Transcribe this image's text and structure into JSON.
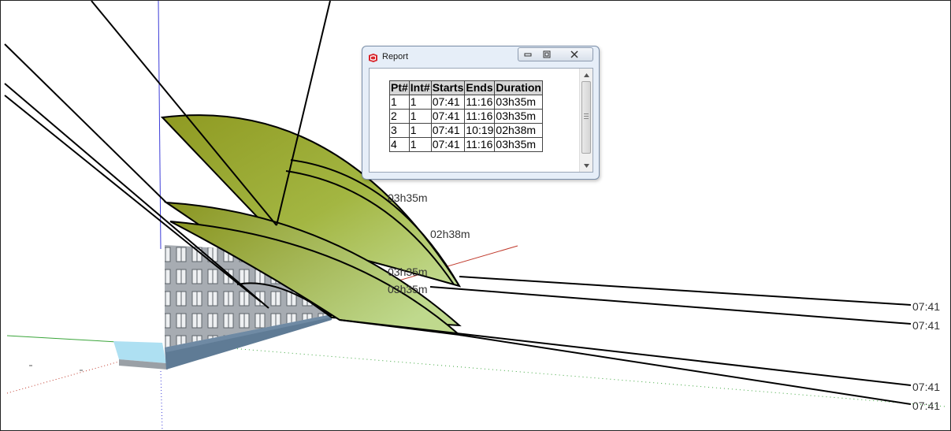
{
  "window": {
    "title": "Report",
    "app_icon": "sketchup-icon",
    "controls": {
      "minimize_icon": "minimize-icon",
      "maximize_icon": "maximize-icon",
      "close_icon": "close-icon"
    }
  },
  "report": {
    "headers": [
      "Pt#",
      "Int#",
      "Starts",
      "Ends",
      "Duration"
    ],
    "rows": [
      [
        "1",
        "1",
        "07:41",
        "11:16",
        "03h35m"
      ],
      [
        "2",
        "1",
        "07:41",
        "11:16",
        "03h35m"
      ],
      [
        "3",
        "1",
        "07:41",
        "10:19",
        "02h38m"
      ],
      [
        "4",
        "1",
        "07:41",
        "11:16",
        "03h35m"
      ]
    ]
  },
  "scene": {
    "duration_labels": [
      "03h35m",
      "02h38m",
      "03h35m",
      "03h35m"
    ],
    "start_labels": [
      "07:41",
      "07:41",
      "07:41",
      "07:41"
    ],
    "colors": {
      "surface_light": "#b9d27f",
      "surface_dark": "#8f9a22",
      "ray": "#000000",
      "axis_red": "#c0392b",
      "axis_green": "#3aa53a",
      "axis_blue": "#3c3cd8",
      "ground_cyan": "#aee0f2",
      "building_gray": "#8a8f96"
    }
  }
}
